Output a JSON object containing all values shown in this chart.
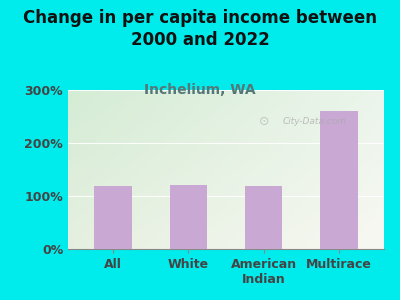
{
  "title": "Change in per capita income between\n2000 and 2022",
  "subtitle": "Inchelium, WA",
  "categories": [
    "All",
    "White",
    "American\nIndian",
    "Multirace"
  ],
  "values": [
    118,
    120,
    118,
    260
  ],
  "bar_color": "#c9a8d4",
  "background_color": "#00ecec",
  "plot_bg_top_left": "#d4ecd4",
  "plot_bg_bottom_right": "#f5f5ee",
  "title_fontsize": 12,
  "subtitle_fontsize": 10,
  "tick_fontsize": 9,
  "ylim": [
    0,
    300
  ],
  "yticks": [
    0,
    100,
    200,
    300
  ],
  "watermark": "City-Data.com",
  "title_color": "#111111",
  "subtitle_color": "#557777",
  "tick_color": "#444444",
  "xtick_color": "#444444"
}
